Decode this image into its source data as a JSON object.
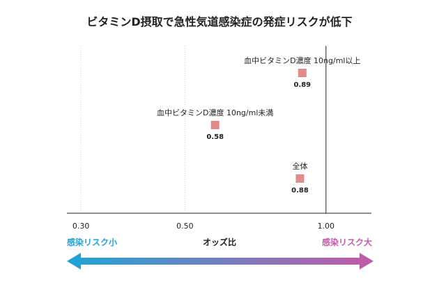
{
  "chart_data": {
    "type": "scatter",
    "title": "ビタミンD摂取で急性気道感染症の発症リスクが低下",
    "xscale": "log",
    "xlim": [
      0.28,
      1.25
    ],
    "xticks": [
      0.3,
      0.5,
      1.0
    ],
    "xtick_labels": [
      "0.30",
      "0.50",
      "1.00"
    ],
    "reference_line": 1.0,
    "grid": "vertical dotted",
    "points": [
      {
        "label": "血中ビタミンD濃度 10ng/ml以上",
        "value": 0.89,
        "value_label": "0.89"
      },
      {
        "label": "血中ビタミンD濃度 10ng/ml未満",
        "value": 0.58,
        "value_label": "0.58"
      },
      {
        "label": "全体",
        "value": 0.88,
        "value_label": "0.88"
      }
    ],
    "marker_color": "#e08a8a",
    "xlabel": "オッズ比",
    "left_caption": "感染リスク小",
    "right_caption": "感染リスク大",
    "colors": {
      "low_risk": "#1fa3d8",
      "high_risk": "#c45aa8"
    }
  }
}
